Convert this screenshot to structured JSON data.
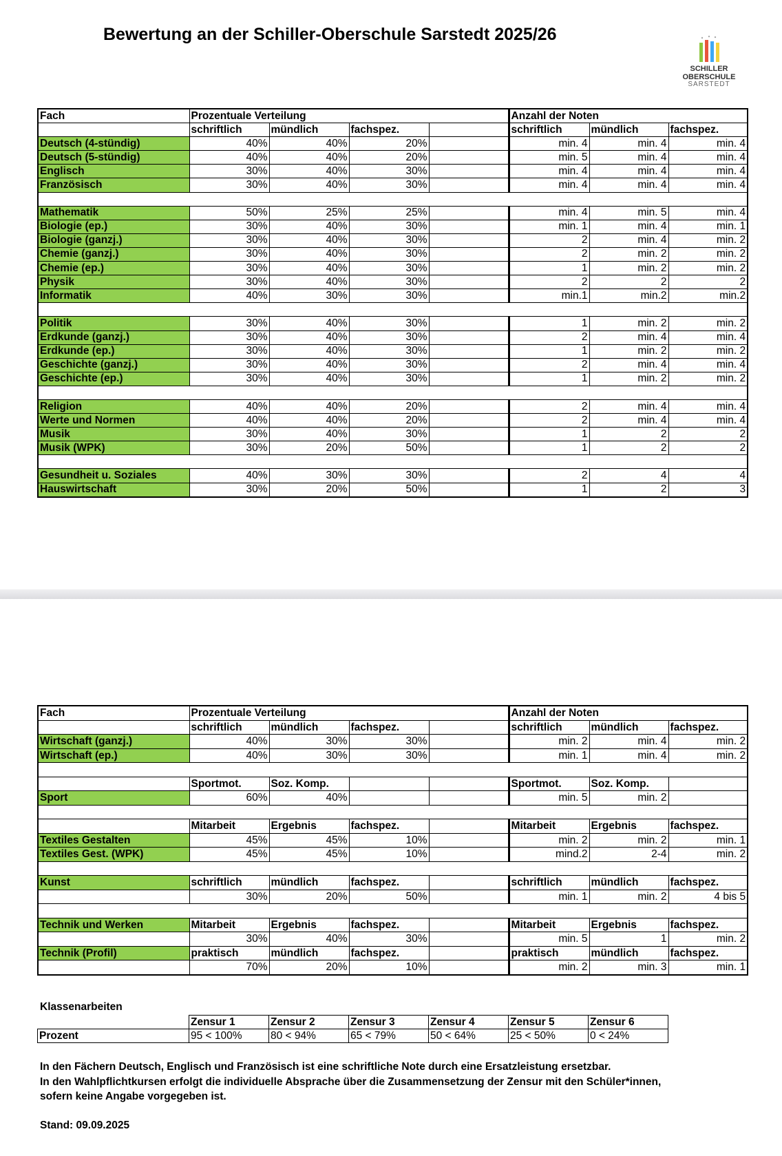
{
  "title": "Bewertung an der Schiller-Oberschule Sarstedt 2025/26",
  "logo": {
    "line1": "SCHILLER",
    "line2": "OBERSCHULE",
    "line3": "SARSTEDT",
    "colors": [
      "#8dc63f",
      "#e8553c",
      "#3fa9f5",
      "#f5d33f"
    ]
  },
  "colors": {
    "subject_fill": "#92d050",
    "separator": "#e4e4e8"
  },
  "tables": [
    {
      "rows": [
        {
          "kind": "top",
          "cells": [
            "Fach",
            "Prozentuale Verteilung",
            "Anzahl der Noten"
          ]
        },
        {
          "kind": "sub",
          "cells": [
            "",
            "schriftlich",
            "mündlich",
            "fachspez.",
            "",
            "schriftlich",
            "mündlich",
            "fachspez."
          ]
        },
        {
          "kind": "val",
          "cells": [
            "Deutsch (4-stündig)",
            "40%",
            "40%",
            "20%",
            "",
            "min. 4",
            "min. 4",
            "min. 4"
          ]
        },
        {
          "kind": "val",
          "cells": [
            "Deutsch (5-stündig)",
            "40%",
            "40%",
            "20%",
            "",
            "min. 5",
            "min. 4",
            "min. 4"
          ]
        },
        {
          "kind": "val",
          "cells": [
            "Englisch",
            "30%",
            "40%",
            "30%",
            "",
            "min. 4",
            "min. 4",
            "min. 4"
          ]
        },
        {
          "kind": "val",
          "cells": [
            "Französisch",
            "30%",
            "40%",
            "30%",
            "",
            "min. 4",
            "min. 4",
            "min. 4"
          ]
        },
        {
          "kind": "blank"
        },
        {
          "kind": "val",
          "cells": [
            "Mathematik",
            "50%",
            "25%",
            "25%",
            "",
            "min. 4",
            "min. 5",
            "min. 4"
          ]
        },
        {
          "kind": "val",
          "cells": [
            "Biologie (ep.)",
            "30%",
            "40%",
            "30%",
            "",
            "min. 1",
            "min. 4",
            "min. 1"
          ]
        },
        {
          "kind": "val",
          "cells": [
            "Biologie (ganzj.)",
            "30%",
            "40%",
            "30%",
            "",
            "2",
            "min. 4",
            "min. 2"
          ]
        },
        {
          "kind": "val",
          "cells": [
            "Chemie (ganzj.)",
            "30%",
            "40%",
            "30%",
            "",
            "2",
            "min. 2",
            "min. 2"
          ]
        },
        {
          "kind": "val",
          "cells": [
            "Chemie (ep.)",
            "30%",
            "40%",
            "30%",
            "",
            "1",
            "min. 2",
            "min. 2"
          ]
        },
        {
          "kind": "val",
          "cells": [
            "Physik",
            "30%",
            "40%",
            "30%",
            "",
            "2",
            "2",
            "2"
          ]
        },
        {
          "kind": "val",
          "cells": [
            "Informatik",
            "40%",
            "30%",
            "30%",
            "",
            "min.1",
            "min.2",
            "min.2"
          ]
        },
        {
          "kind": "blank"
        },
        {
          "kind": "val",
          "cells": [
            "Politik",
            "30%",
            "40%",
            "30%",
            "",
            "1",
            "min. 2",
            "min. 2"
          ]
        },
        {
          "kind": "val",
          "cells": [
            "Erdkunde (ganzj.)",
            "30%",
            "40%",
            "30%",
            "",
            "2",
            "min. 4",
            "min. 4"
          ]
        },
        {
          "kind": "val",
          "cells": [
            "Erdkunde (ep.)",
            "30%",
            "40%",
            "30%",
            "",
            "1",
            "min. 2",
            "min. 2"
          ]
        },
        {
          "kind": "val",
          "cells": [
            "Geschichte (ganzj.)",
            "30%",
            "40%",
            "30%",
            "",
            "2",
            "min. 4",
            "min. 4"
          ]
        },
        {
          "kind": "val",
          "cells": [
            "Geschichte (ep.)",
            "30%",
            "40%",
            "30%",
            "",
            "1",
            "min. 2",
            "min. 2"
          ]
        },
        {
          "kind": "blank"
        },
        {
          "kind": "val",
          "cells": [
            "Religion",
            "40%",
            "40%",
            "20%",
            "",
            "2",
            "min. 4",
            "min. 4"
          ]
        },
        {
          "kind": "val",
          "cells": [
            "Werte und Normen",
            "40%",
            "40%",
            "20%",
            "",
            "2",
            "min. 4",
            "min. 4"
          ]
        },
        {
          "kind": "val",
          "cells": [
            "Musik",
            "30%",
            "40%",
            "30%",
            "",
            "1",
            "2",
            "2"
          ]
        },
        {
          "kind": "val",
          "cells": [
            "Musik (WPK)",
            "30%",
            "20%",
            "50%",
            "",
            "1",
            "2",
            "2"
          ]
        },
        {
          "kind": "blank"
        },
        {
          "kind": "val",
          "cells": [
            "Gesundheit u. Soziales",
            "40%",
            "30%",
            "30%",
            "",
            "2",
            "4",
            "4"
          ]
        },
        {
          "kind": "val",
          "cells": [
            "Hauswirtschaft",
            "30%",
            "20%",
            "50%",
            "",
            "1",
            "2",
            "3"
          ]
        }
      ]
    },
    {
      "rows": [
        {
          "kind": "top",
          "cells": [
            "Fach",
            "Prozentuale Verteilung",
            "Anzahl der Noten"
          ]
        },
        {
          "kind": "sub",
          "cells": [
            "",
            "schriftlich",
            "mündlich",
            "fachspez.",
            "",
            "schriftlich",
            "mündlich",
            "fachspez."
          ]
        },
        {
          "kind": "val",
          "cells": [
            "Wirtschaft (ganzj.)",
            "40%",
            "30%",
            "30%",
            "",
            "min. 2",
            "min. 4",
            "min. 2"
          ]
        },
        {
          "kind": "val",
          "cells": [
            "Wirtschaft (ep.)",
            "40%",
            "30%",
            "30%",
            "",
            "min. 1",
            "min. 4",
            "min. 2"
          ]
        },
        {
          "kind": "blank"
        },
        {
          "kind": "sub",
          "cells": [
            "",
            "Sportmot.",
            "Soz. Komp.",
            "",
            "",
            "Sportmot.",
            "Soz. Komp.",
            ""
          ]
        },
        {
          "kind": "val",
          "cells": [
            "Sport",
            "60%",
            "40%",
            "",
            "",
            "min. 5",
            "min. 2",
            ""
          ]
        },
        {
          "kind": "blank"
        },
        {
          "kind": "sub",
          "cells": [
            "",
            "Mitarbeit",
            "Ergebnis",
            "fachspez.",
            "",
            "Mitarbeit",
            "Ergebnis",
            "fachspez."
          ]
        },
        {
          "kind": "val",
          "cells": [
            "Textiles Gestalten",
            "45%",
            "45%",
            "10%",
            "",
            "min. 2",
            "min. 2",
            "min. 1"
          ]
        },
        {
          "kind": "val",
          "cells": [
            "Textiles Gest. (WPK)",
            "45%",
            "45%",
            "10%",
            "",
            "mind.2",
            "2-4",
            "min. 2"
          ]
        },
        {
          "kind": "blank"
        },
        {
          "kind": "sub",
          "cells": [
            "Kunst",
            "schriftlich",
            "mündlich",
            "fachspez.",
            "",
            "schriftlich",
            "mündlich",
            "fachspez."
          ]
        },
        {
          "kind": "val",
          "cells": [
            "",
            "30%",
            "20%",
            "50%",
            "",
            "min. 1",
            "min. 2",
            "4 bis 5"
          ]
        },
        {
          "kind": "blank"
        },
        {
          "kind": "sub",
          "cells": [
            "Technik und Werken",
            "Mitarbeit",
            "Ergebnis",
            "fachspez.",
            "",
            "Mitarbeit",
            "Ergebnis",
            "fachspez."
          ]
        },
        {
          "kind": "val",
          "cells": [
            "",
            "30%",
            "40%",
            "30%",
            "",
            "min. 5",
            "1",
            "min. 2"
          ]
        },
        {
          "kind": "sub",
          "cells": [
            "Technik (Profil)",
            "praktisch",
            "mündlich",
            "fachspez.",
            "",
            "praktisch",
            "mündlich",
            "fachspez."
          ]
        },
        {
          "kind": "val",
          "cells": [
            "",
            "70%",
            "20%",
            "10%",
            "",
            "min. 2",
            "min. 3",
            "min. 1"
          ]
        }
      ]
    }
  ],
  "klassenarbeiten": {
    "heading": "Klassenarbeiten",
    "headers": [
      "Zensur 1",
      "Zensur 2",
      "Zensur 3",
      "Zensur 4",
      "Zensur 5",
      "Zensur 6"
    ],
    "row_label": "Prozent",
    "values": [
      "95 < 100%",
      "80 < 94%",
      "65 < 79%",
      "50 < 64%",
      "25 < 50%",
      "0 < 24%"
    ]
  },
  "notes": [
    "In den Fächern Deutsch,  Englisch und Französisch ist eine schriftliche Note durch eine Ersatzleistung ersetzbar.",
    "In den Wahlpflichtkursen erfolgt die individuelle Absprache über die Zusammensetzung der Zensur mit den Schüler*innen,",
    "sofern keine Angabe vorgegeben ist."
  ],
  "stand": "Stand: 09.09.2025"
}
